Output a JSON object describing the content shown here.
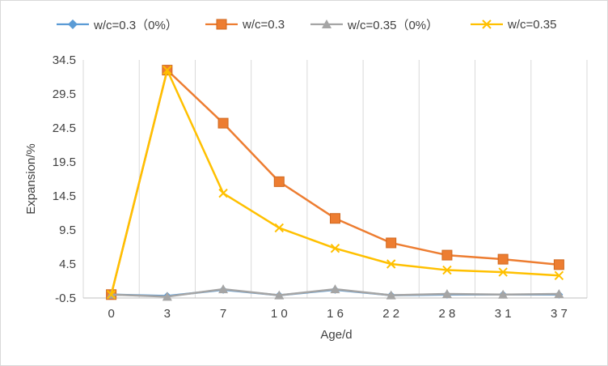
{
  "chart_data": {
    "type": "line",
    "xlabel": "Age/d",
    "ylabel": "Expansion/%",
    "categories": [
      "0",
      "3",
      "7",
      "10",
      "16",
      "22",
      "28",
      "31",
      "37"
    ],
    "category_labels": [
      "0",
      "3",
      "7",
      "1 0",
      "1 6",
      "2 2",
      "2 8",
      "3 1",
      "3 7"
    ],
    "yticks": [
      "34.5",
      "29.5",
      "24.5",
      "19.5",
      "14.5",
      "9.5",
      "4.5",
      "-0.5"
    ],
    "ylim": [
      -0.5,
      34.5
    ],
    "grid": "vertical gridlines at category boundaries",
    "legend_position": "top",
    "series": [
      {
        "name": "w/c=0.3（0%）",
        "color": "#5b9bd5",
        "marker": "diamond",
        "values": [
          0,
          -0.2,
          0.7,
          -0.1,
          0.7,
          -0.1,
          0,
          0,
          0
        ]
      },
      {
        "name": "w/c=0.3",
        "color": "#ed7d31",
        "marker": "square",
        "values": [
          0,
          33,
          25.2,
          16.6,
          11.2,
          7.6,
          5.8,
          5.2,
          4.4
        ]
      },
      {
        "name": "w/c=0.35（0%）",
        "color": "#a5a5a5",
        "marker": "triangle",
        "values": [
          0,
          -0.3,
          0.8,
          -0.1,
          0.8,
          -0.1,
          0.1,
          0,
          0.1
        ]
      },
      {
        "name": "w/c=0.35",
        "color": "#ffc000",
        "marker": "x",
        "values": [
          0,
          33,
          14.9,
          9.8,
          6.8,
          4.5,
          3.6,
          3.3,
          2.8
        ]
      }
    ]
  }
}
